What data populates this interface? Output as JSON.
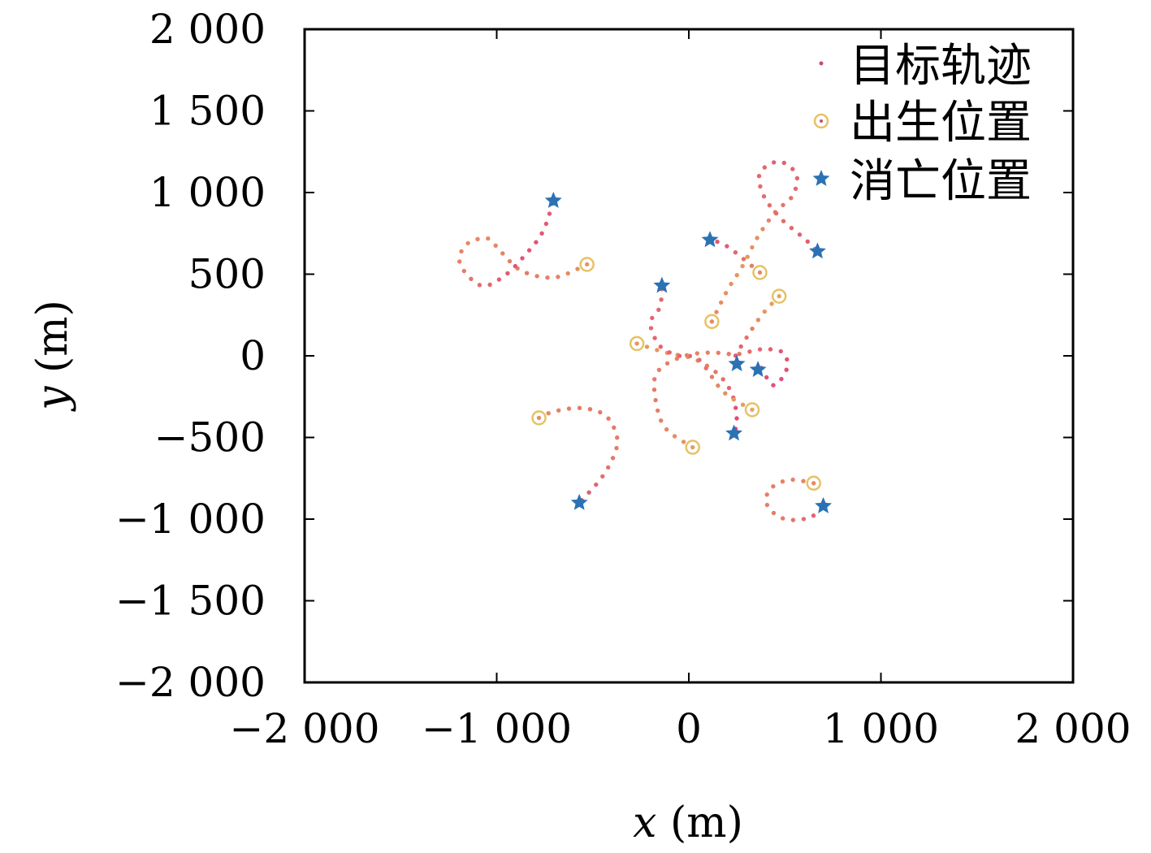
{
  "chart_data": {
    "type": "scatter",
    "xlabel": "x (m)",
    "ylabel": "y (m)",
    "xlim": [
      -2000,
      2000
    ],
    "ylim": [
      -2000,
      2000
    ],
    "xticks": [
      -2000,
      -1000,
      0,
      1000,
      2000
    ],
    "yticks": [
      -2000,
      -1500,
      -1000,
      -500,
      0,
      500,
      1000,
      1500,
      2000
    ],
    "xtick_labels": [
      "−2 000",
      "−1 000",
      "0",
      "1 000",
      "2 000"
    ],
    "ytick_labels": [
      "−2 000",
      "−1 500",
      "−1 000",
      "−500",
      "0",
      "500",
      "1 000",
      "1 500",
      "2 000"
    ],
    "grid": false,
    "legend_position": "top-right",
    "legend": [
      {
        "label": "目标轨迹",
        "marker": "dot"
      },
      {
        "label": "出生位置",
        "marker": "circle"
      },
      {
        "label": "消亡位置",
        "marker": "star"
      }
    ],
    "colors": {
      "track_start": "#e8a65a",
      "track_end": "#e0457a",
      "birth": "#e6c266",
      "death": "#2b72b5"
    },
    "tracks": [
      {
        "points": [
          [
            -530,
            560
          ],
          [
            -700,
            480
          ],
          [
            -870,
            520
          ],
          [
            -980,
            640
          ],
          [
            -1050,
            720
          ],
          [
            -1160,
            680
          ],
          [
            -1190,
            560
          ],
          [
            -1080,
            430
          ],
          [
            -960,
            490
          ],
          [
            -850,
            620
          ],
          [
            -760,
            760
          ],
          [
            -705,
            950
          ]
        ]
      },
      {
        "points": [
          [
            370,
            510
          ],
          [
            200,
            670
          ],
          [
            110,
            710
          ]
        ]
      },
      {
        "points": [
          [
            120,
            210
          ],
          [
            200,
            400
          ],
          [
            280,
            550
          ],
          [
            360,
            730
          ],
          [
            450,
            880
          ],
          [
            540,
            980
          ],
          [
            560,
            1110
          ],
          [
            470,
            1190
          ],
          [
            370,
            1120
          ],
          [
            390,
            980
          ],
          [
            480,
            840
          ],
          [
            600,
            720
          ],
          [
            670,
            640
          ]
        ]
      },
      {
        "points": [
          [
            -270,
            75
          ],
          [
            -120,
            20
          ],
          [
            30,
            -20
          ],
          [
            160,
            -120
          ],
          [
            230,
            -250
          ],
          [
            250,
            -400
          ],
          [
            235,
            -475
          ]
        ]
      },
      {
        "points": [
          [
            470,
            365
          ],
          [
            380,
            250
          ],
          [
            300,
            110
          ],
          [
            240,
            -10
          ],
          [
            250,
            -50
          ]
        ]
      },
      {
        "points": [
          [
            330,
            -330
          ],
          [
            180,
            -220
          ],
          [
            50,
            -20
          ],
          [
            -50,
            0
          ],
          [
            -150,
            60
          ],
          [
            -200,
            200
          ],
          [
            -150,
            300
          ],
          [
            -140,
            430
          ]
        ]
      },
      {
        "points": [
          [
            20,
            -560
          ],
          [
            -130,
            -430
          ],
          [
            -180,
            -200
          ],
          [
            -150,
            -80
          ],
          [
            -20,
            0
          ],
          [
            120,
            20
          ],
          [
            250,
            10
          ],
          [
            380,
            40
          ],
          [
            490,
            20
          ],
          [
            510,
            -80
          ],
          [
            440,
            -180
          ],
          [
            370,
            -60
          ],
          [
            360,
            -85
          ]
        ]
      },
      {
        "points": [
          [
            -780,
            -380
          ],
          [
            -700,
            -340
          ],
          [
            -560,
            -320
          ],
          [
            -440,
            -360
          ],
          [
            -380,
            -470
          ],
          [
            -380,
            -580
          ],
          [
            -450,
            -740
          ],
          [
            -570,
            -900
          ]
        ]
      },
      {
        "points": [
          [
            650,
            -780
          ],
          [
            520,
            -760
          ],
          [
            420,
            -820
          ],
          [
            410,
            -920
          ],
          [
            500,
            -1000
          ],
          [
            630,
            -990
          ],
          [
            700,
            -920
          ]
        ]
      }
    ]
  }
}
